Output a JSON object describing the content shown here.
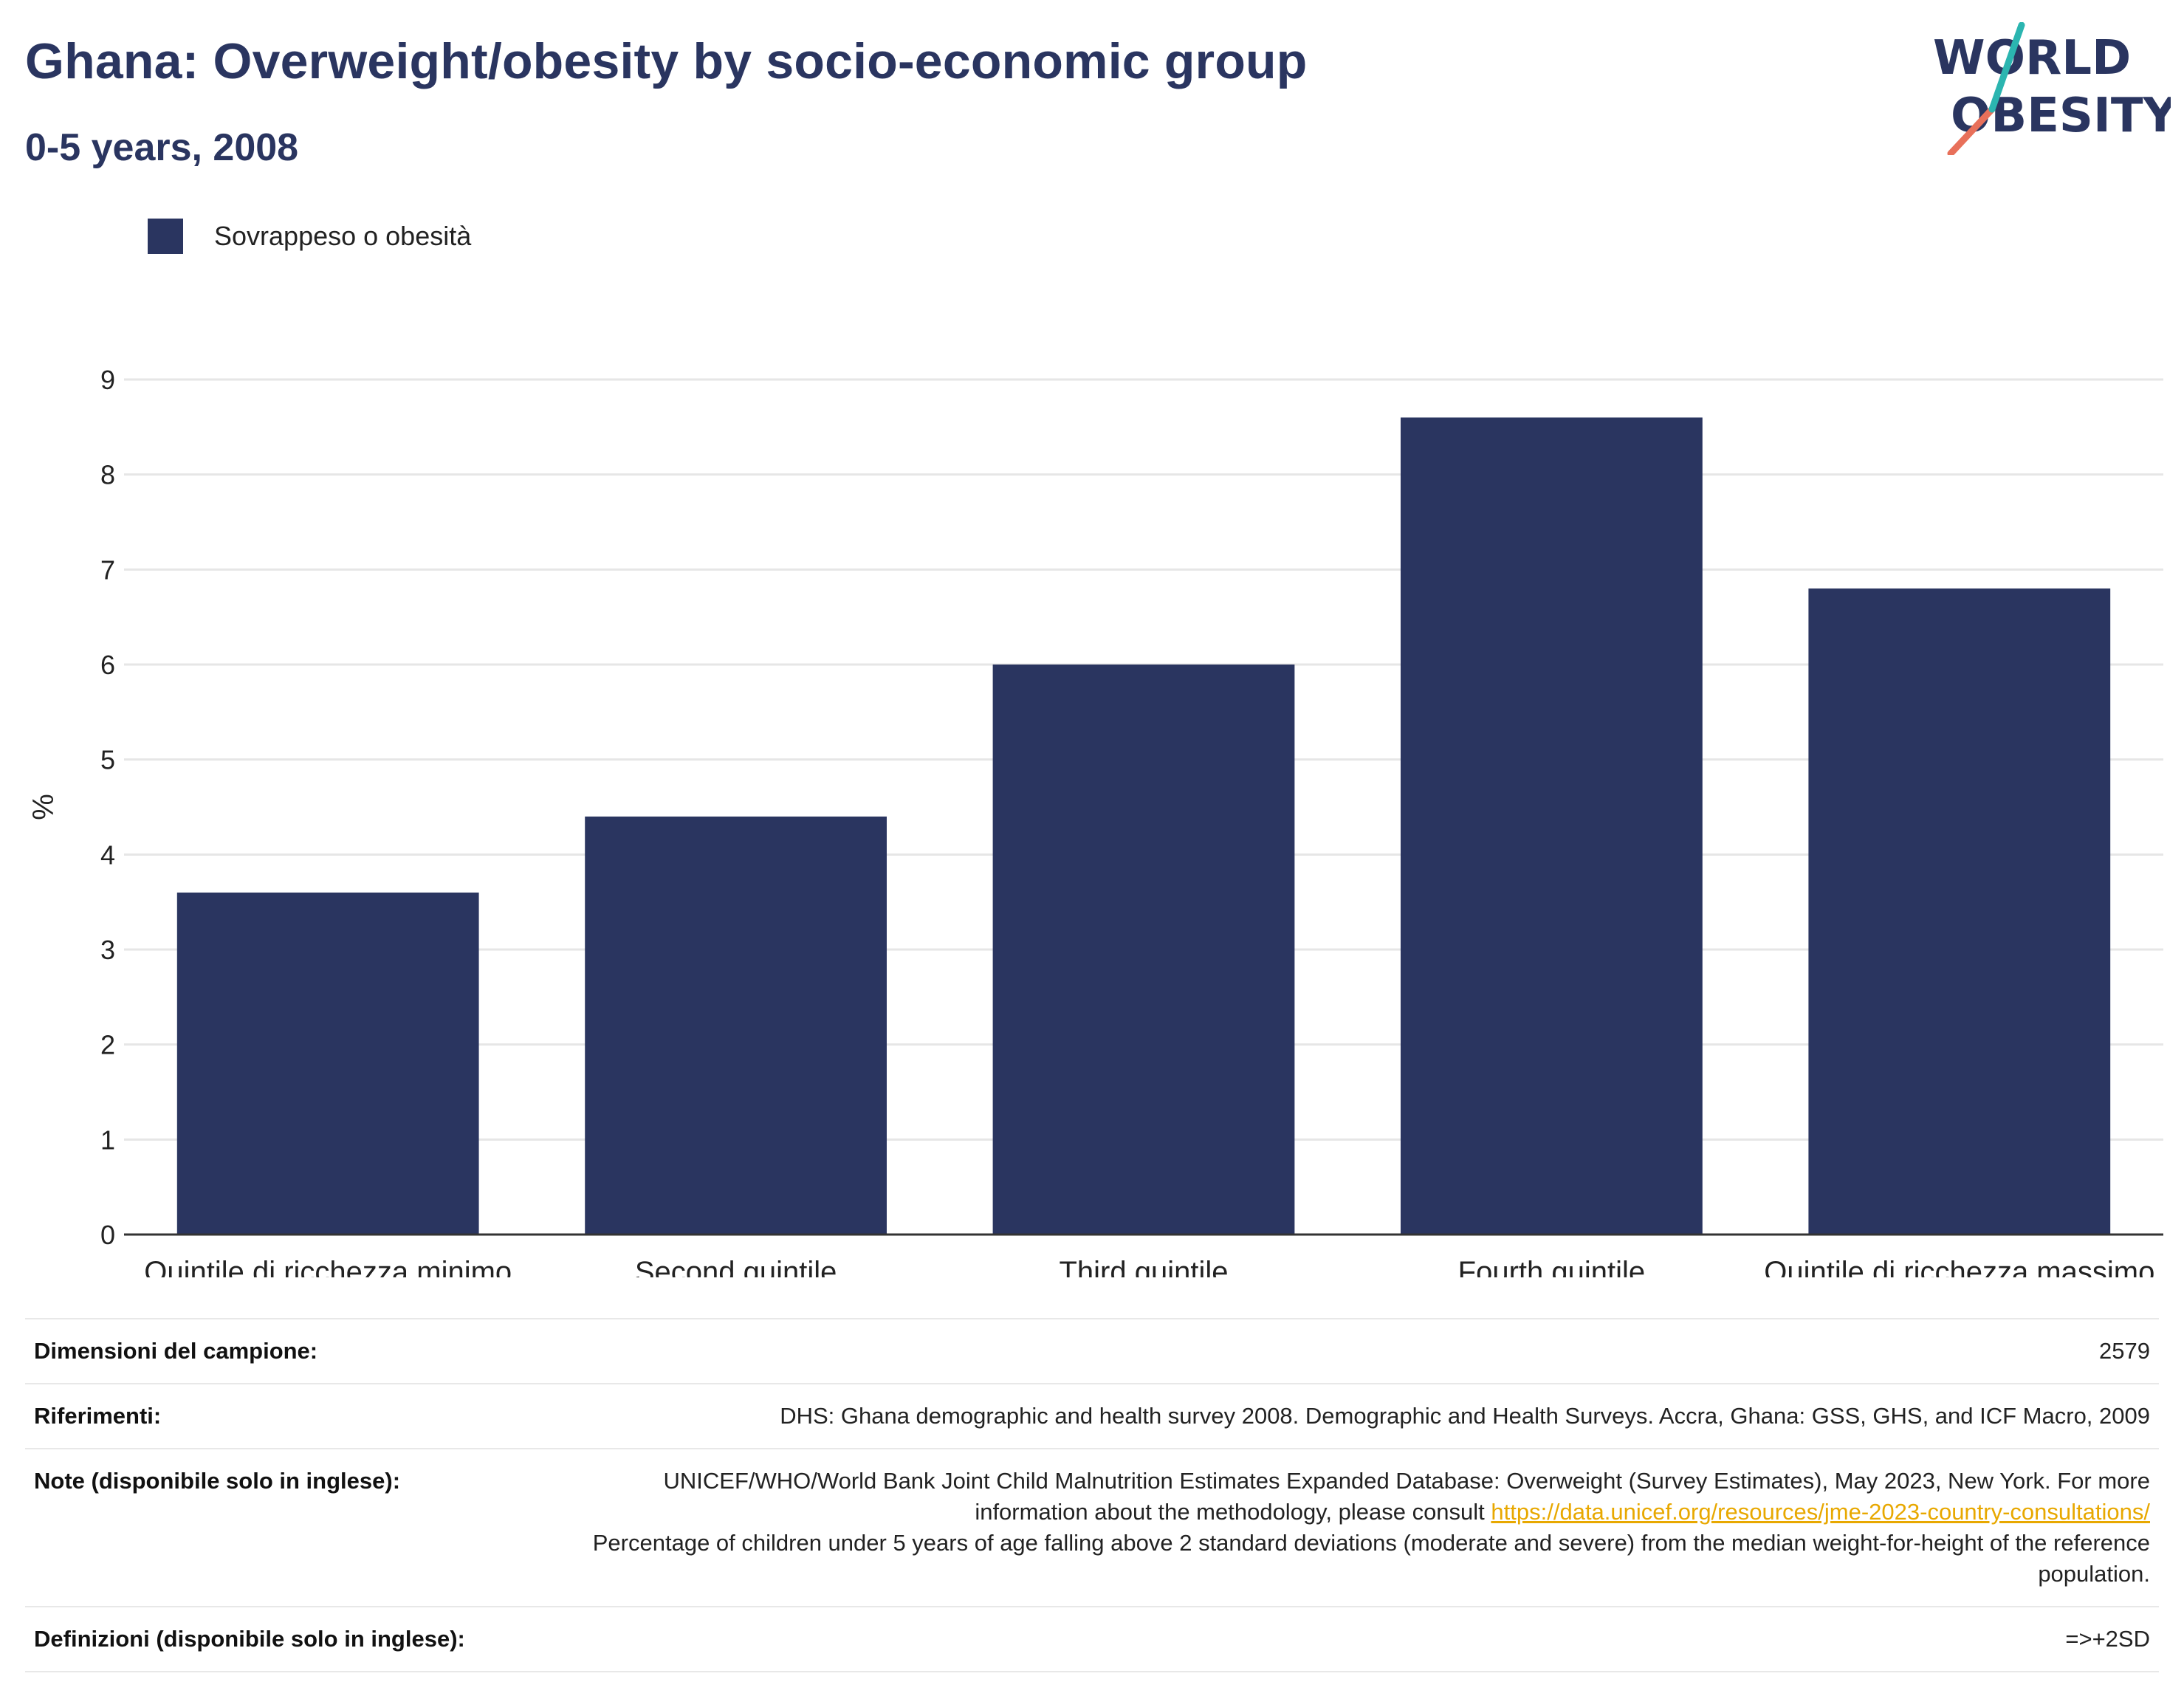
{
  "header": {
    "title": "Ghana: Overweight/obesity by socio-economic group",
    "subtitle": "0-5 years, 2008"
  },
  "logo": {
    "line1": "WORLD",
    "line2": "OBESITY"
  },
  "colors": {
    "bar": "#2a3560",
    "title": "#2a3560",
    "grid": "#e6e6e6",
    "axis": "#333333",
    "link": "#e8a800",
    "logo_teal": "#2bb5b0",
    "logo_coral": "#e8705a"
  },
  "chart_data": {
    "type": "bar",
    "categories": [
      "Quintile di ricchezza minimo",
      "Second quintile",
      "Third quintile",
      "Fourth quintile",
      "Quintile di ricchezza massimo"
    ],
    "series": [
      {
        "name": "Sovrappeso o obesità",
        "values": [
          3.6,
          4.4,
          6.0,
          8.6,
          6.8
        ]
      }
    ],
    "ylabel": "%",
    "ylim": [
      0,
      9
    ],
    "yticks": [
      0,
      1,
      2,
      3,
      4,
      5,
      6,
      7,
      8,
      9
    ],
    "grid": true,
    "legend": "top-left"
  },
  "info": {
    "sample_label": "Dimensioni del campione:",
    "sample_value": "2579",
    "references_label": "Riferimenti:",
    "references_value": "DHS: Ghana demographic and health survey 2008. Demographic and Health Surveys. Accra, Ghana: GSS, GHS, and ICF Macro, 2009",
    "notes_label": "Note (disponibile solo in inglese):",
    "notes_text1": "UNICEF/WHO/World Bank Joint Child Malnutrition Estimates Expanded Database: Overweight (Survey Estimates), May 2023, New York. For more information about the methodology, please consult",
    "notes_link": "https://data.unicef.org/resources/jme-2023-country-consultations/",
    "notes_text2": "Percentage of children under 5 years of age falling above 2 standard deviations (moderate and severe) from the median weight-for-height of the reference population.",
    "definitions_label": "Definizioni (disponibile solo in inglese):",
    "definitions_value": "=>+2SD"
  }
}
